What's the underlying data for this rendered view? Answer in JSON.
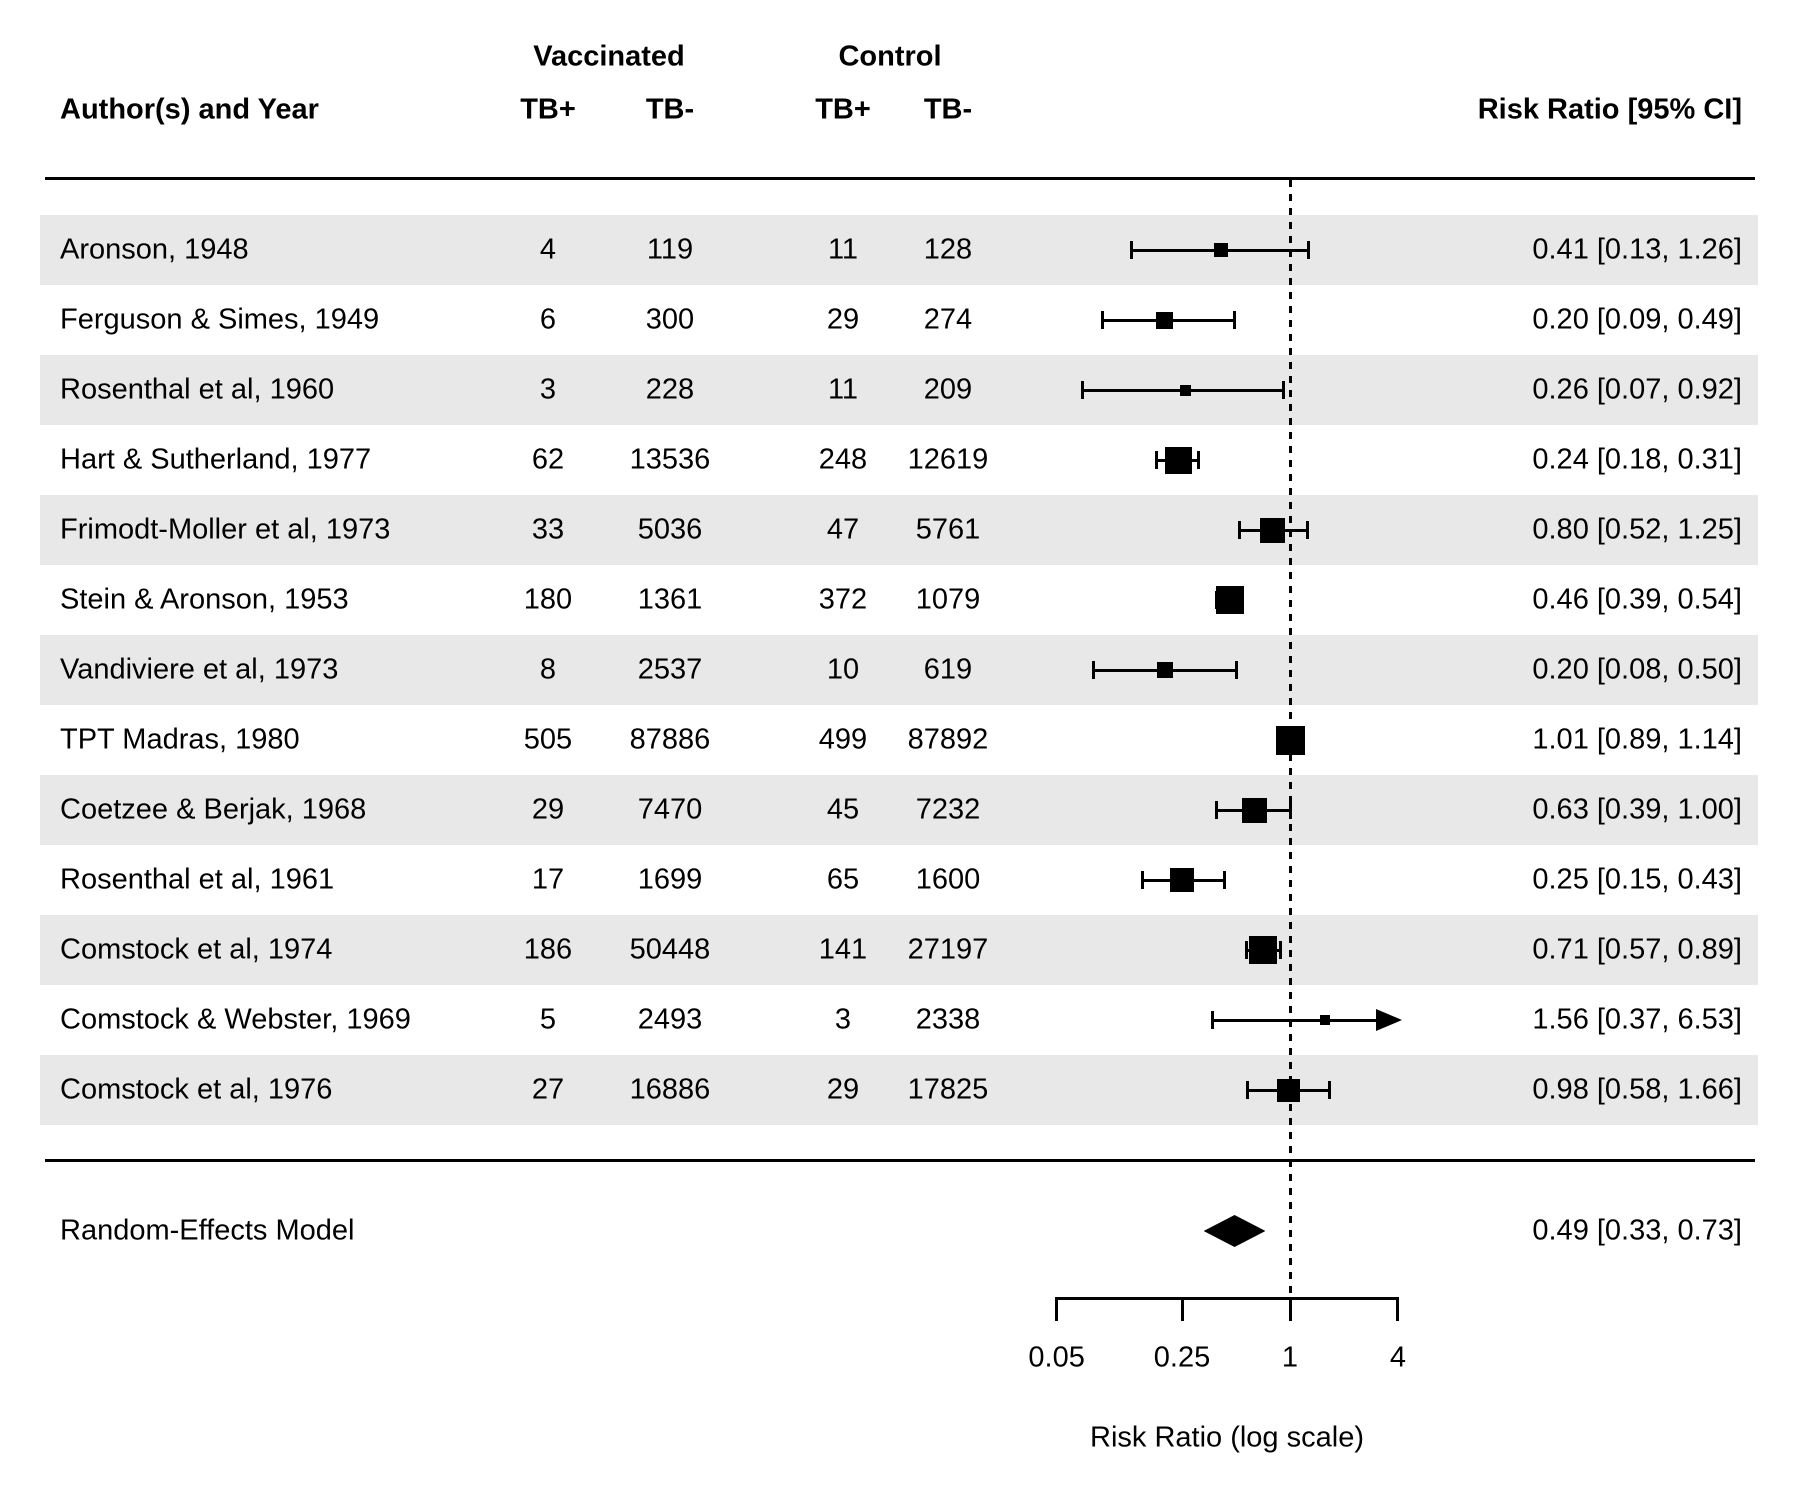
{
  "colors": {
    "band": "#e8e8e8",
    "ink": "#000000",
    "background": "#ffffff"
  },
  "header": {
    "author_col": "Author(s) and Year",
    "group_vaccinated": "Vaccinated",
    "group_control": "Control",
    "tb_pos": "TB+",
    "tb_neg": "TB-",
    "rr_col": "Risk Ratio [95% CI]"
  },
  "summary": {
    "label": "Random-Effects Model",
    "rr_label": "0.49 [0.33, 0.73]",
    "rr": 0.49,
    "ci_low": 0.33,
    "ci_high": 0.73
  },
  "axis": {
    "tick_values": [
      0.05,
      0.25,
      1,
      4
    ],
    "tick_labels": [
      "0.05",
      "0.25",
      "1",
      "4"
    ],
    "title": "Risk Ratio (log scale)",
    "min": 0.05,
    "max": 4,
    "reference_line": 1,
    "scale": "log"
  },
  "chart_data": {
    "type": "scatter",
    "variant": "forest-plot",
    "title": "",
    "xlabel": "Risk Ratio (log scale)",
    "x_scale": "log",
    "xlim": [
      0.05,
      4
    ],
    "reference_line": 1,
    "legend_position": "none",
    "grid": false,
    "columns": [
      "Author(s) and Year",
      "Vaccinated TB+",
      "Vaccinated TB-",
      "Control TB+",
      "Control TB-",
      "Risk Ratio [95% CI]"
    ],
    "studies": [
      {
        "author": "Aronson, 1948",
        "tb_pos_vacc": "4",
        "tb_neg_vacc": "119",
        "tb_pos_ctrl": "11",
        "tb_neg_ctrl": "128",
        "rr_label": "0.41 [0.13, 1.26]",
        "rr": 0.41,
        "ci_low": 0.13,
        "ci_high": 1.26,
        "marker_size": 14,
        "arrow_high": false
      },
      {
        "author": "Ferguson & Simes, 1949",
        "tb_pos_vacc": "6",
        "tb_neg_vacc": "300",
        "tb_pos_ctrl": "29",
        "tb_neg_ctrl": "274",
        "rr_label": "0.20 [0.09, 0.49]",
        "rr": 0.2,
        "ci_low": 0.09,
        "ci_high": 0.49,
        "marker_size": 17,
        "arrow_high": false
      },
      {
        "author": "Rosenthal et al, 1960",
        "tb_pos_vacc": "3",
        "tb_neg_vacc": "228",
        "tb_pos_ctrl": "11",
        "tb_neg_ctrl": "209",
        "rr_label": "0.26 [0.07, 0.92]",
        "rr": 0.26,
        "ci_low": 0.07,
        "ci_high": 0.92,
        "marker_size": 11,
        "arrow_high": false
      },
      {
        "author": "Hart & Sutherland, 1977",
        "tb_pos_vacc": "62",
        "tb_neg_vacc": "13536",
        "tb_pos_ctrl": "248",
        "tb_neg_ctrl": "12619",
        "rr_label": "0.24 [0.18, 0.31]",
        "rr": 0.24,
        "ci_low": 0.18,
        "ci_high": 0.31,
        "marker_size": 27,
        "arrow_high": false
      },
      {
        "author": "Frimodt-Moller et al, 1973",
        "tb_pos_vacc": "33",
        "tb_neg_vacc": "5036",
        "tb_pos_ctrl": "47",
        "tb_neg_ctrl": "5761",
        "rr_label": "0.80 [0.52, 1.25]",
        "rr": 0.8,
        "ci_low": 0.52,
        "ci_high": 1.25,
        "marker_size": 25,
        "arrow_high": false
      },
      {
        "author": "Stein & Aronson, 1953",
        "tb_pos_vacc": "180",
        "tb_neg_vacc": "1361",
        "tb_pos_ctrl": "372",
        "tb_neg_ctrl": "1079",
        "rr_label": "0.46 [0.39, 0.54]",
        "rr": 0.46,
        "ci_low": 0.39,
        "ci_high": 0.54,
        "marker_size": 28,
        "arrow_high": false
      },
      {
        "author": "Vandiviere et al, 1973",
        "tb_pos_vacc": "8",
        "tb_neg_vacc": "2537",
        "tb_pos_ctrl": "10",
        "tb_neg_ctrl": "619",
        "rr_label": "0.20 [0.08, 0.50]",
        "rr": 0.2,
        "ci_low": 0.08,
        "ci_high": 0.5,
        "marker_size": 16,
        "arrow_high": false
      },
      {
        "author": "TPT Madras, 1980",
        "tb_pos_vacc": "505",
        "tb_neg_vacc": "87886",
        "tb_pos_ctrl": "499",
        "tb_neg_ctrl": "87892",
        "rr_label": "1.01 [0.89, 1.14]",
        "rr": 1.01,
        "ci_low": 0.89,
        "ci_high": 1.14,
        "marker_size": 29,
        "arrow_high": false
      },
      {
        "author": "Coetzee & Berjak, 1968",
        "tb_pos_vacc": "29",
        "tb_neg_vacc": "7470",
        "tb_pos_ctrl": "45",
        "tb_neg_ctrl": "7232",
        "rr_label": "0.63 [0.39, 1.00]",
        "rr": 0.63,
        "ci_low": 0.39,
        "ci_high": 1.0,
        "marker_size": 25,
        "arrow_high": false
      },
      {
        "author": "Rosenthal et al, 1961",
        "tb_pos_vacc": "17",
        "tb_neg_vacc": "1699",
        "tb_pos_ctrl": "65",
        "tb_neg_ctrl": "1600",
        "rr_label": "0.25 [0.15, 0.43]",
        "rr": 0.25,
        "ci_low": 0.15,
        "ci_high": 0.43,
        "marker_size": 24,
        "arrow_high": false
      },
      {
        "author": "Comstock et al, 1974",
        "tb_pos_vacc": "186",
        "tb_neg_vacc": "50448",
        "tb_pos_ctrl": "141",
        "tb_neg_ctrl": "27197",
        "rr_label": "0.71 [0.57, 0.89]",
        "rr": 0.71,
        "ci_low": 0.57,
        "ci_high": 0.89,
        "marker_size": 28,
        "arrow_high": false
      },
      {
        "author": "Comstock & Webster, 1969",
        "tb_pos_vacc": "5",
        "tb_neg_vacc": "2493",
        "tb_pos_ctrl": "3",
        "tb_neg_ctrl": "2338",
        "rr_label": "1.56 [0.37, 6.53]",
        "rr": 1.56,
        "ci_low": 0.37,
        "ci_high": 6.53,
        "marker_size": 10,
        "arrow_high": true
      },
      {
        "author": "Comstock et al, 1976",
        "tb_pos_vacc": "27",
        "tb_neg_vacc": "16886",
        "tb_pos_ctrl": "29",
        "tb_neg_ctrl": "17825",
        "rr_label": "0.98 [0.58, 1.66]",
        "rr": 0.98,
        "ci_low": 0.58,
        "ci_high": 1.66,
        "marker_size": 23,
        "arrow_high": false
      }
    ],
    "summary": {
      "label": "Random-Effects Model",
      "rr": 0.49,
      "ci_low": 0.33,
      "ci_high": 0.73,
      "rr_label": "0.49 [0.33, 0.73]"
    }
  }
}
